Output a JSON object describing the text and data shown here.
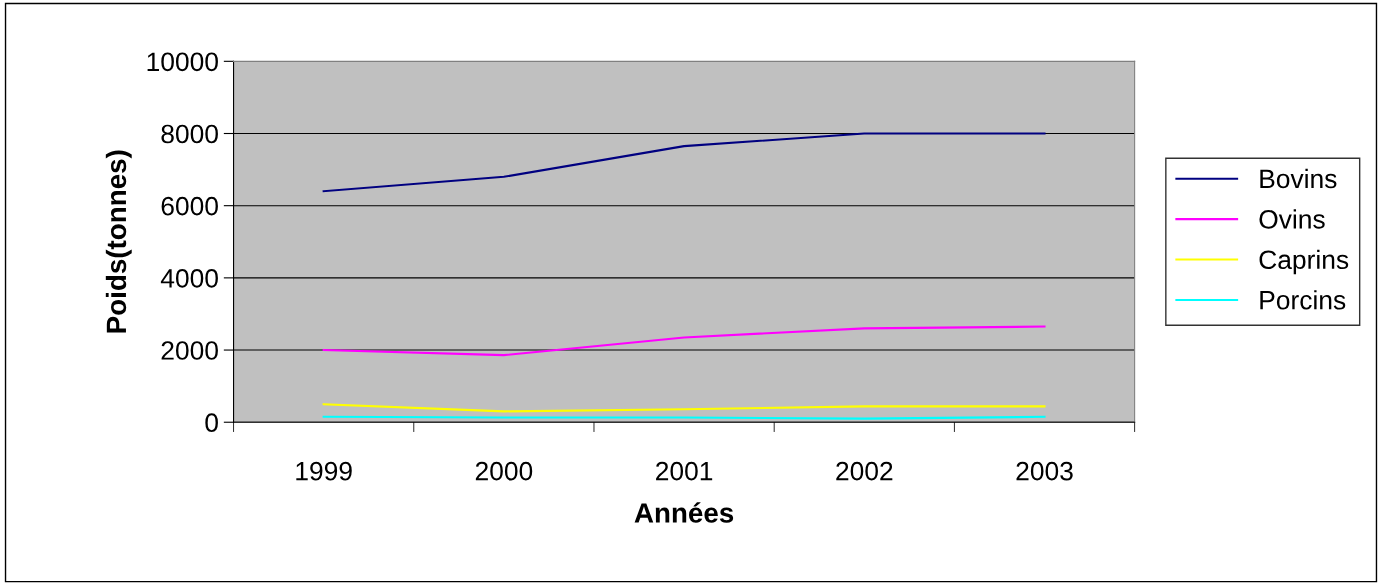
{
  "chart_data": {
    "type": "line",
    "xlabel": "Années",
    "ylabel": "Poids(tonnes)",
    "categories": [
      "1999",
      "2000",
      "2001",
      "2002",
      "2003"
    ],
    "series": [
      {
        "name": "Bovins",
        "color": "#000080",
        "values": [
          6400,
          6800,
          7650,
          8000,
          8000
        ]
      },
      {
        "name": "Ovins",
        "color": "#ff00ff",
        "values": [
          2000,
          1860,
          2350,
          2600,
          2650
        ]
      },
      {
        "name": "Caprins",
        "color": "#ffff00",
        "values": [
          500,
          300,
          360,
          440,
          440
        ]
      },
      {
        "name": "Porcins",
        "color": "#00ffff",
        "values": [
          150,
          130,
          130,
          100,
          150
        ]
      }
    ],
    "ylim": [
      0,
      10000
    ],
    "yticks": [
      0,
      2000,
      4000,
      6000,
      8000,
      10000
    ],
    "grid": "y",
    "legend": "right",
    "marker": "none",
    "line_style": "solid"
  }
}
